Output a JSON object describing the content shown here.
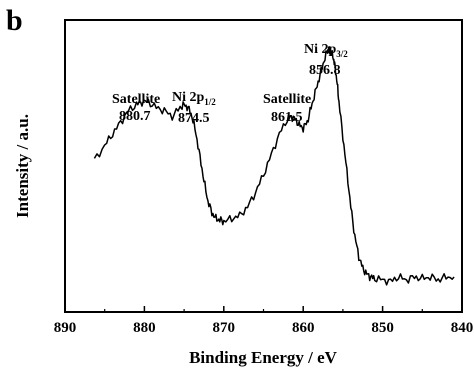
{
  "panel_label": "b",
  "chart_data": {
    "type": "line",
    "title": "",
    "xlabel": "Binding Energy / eV",
    "ylabel": "Intensity / a.u.",
    "xlim": [
      890,
      840
    ],
    "x_reversed": true,
    "ylim": [
      0,
      100
    ],
    "y_ticks_labeled": false,
    "x_ticks": [
      890,
      880,
      870,
      860,
      850,
      840
    ],
    "x_tick_labels": [
      "890",
      "880",
      "870",
      "860",
      "850",
      "840"
    ],
    "grid": false,
    "legend": "none",
    "series": [
      {
        "color": "#000000",
        "x": [
          886.3,
          885.0,
          884.0,
          883.0,
          882.0,
          881.0,
          880.3,
          879.5,
          878.5,
          877.5,
          876.5,
          875.5,
          875.0,
          874.5,
          874.0,
          873.5,
          873.0,
          872.5,
          872.0,
          871.5,
          871.0,
          870.5,
          870.0,
          869.0,
          868.0,
          867.0,
          866.0,
          865.0,
          864.0,
          863.0,
          862.0,
          861.5,
          861.0,
          860.5,
          860.0,
          859.5,
          859.0,
          858.5,
          858.0,
          857.5,
          857.0,
          856.8,
          856.5,
          856.2,
          856.0,
          855.7,
          855.5,
          855.0,
          854.5,
          854.0,
          853.5,
          853.0,
          852.5,
          852.0,
          851.5,
          851.0,
          850.0,
          849.0,
          848.0,
          847.0,
          846.0,
          845.0,
          844.0,
          843.0,
          842.0,
          841.0
        ],
        "y": [
          52,
          57,
          61,
          65,
          69,
          71,
          72,
          72,
          70,
          69,
          67,
          70,
          71,
          70,
          67,
          61,
          53,
          45,
          38,
          34,
          32,
          31.5,
          31,
          32,
          33,
          36,
          41,
          47,
          54,
          61,
          66,
          67,
          66,
          64,
          63,
          65,
          70,
          75,
          80,
          85,
          89,
          90,
          89,
          87,
          84,
          78,
          72,
          60,
          48,
          36,
          26,
          19,
          15,
          13,
          12,
          11.5,
          11,
          10.5,
          12,
          11,
          12,
          11.5,
          12,
          11,
          12,
          12
        ]
      }
    ],
    "annotations": [
      {
        "text": "Satellite",
        "value": "880.7"
      },
      {
        "text": "Ni 2p",
        "sub": "1/2",
        "value": "874.5"
      },
      {
        "text": "Satellite",
        "value": "861.5"
      },
      {
        "text": "Ni 2p",
        "sub": "3/2",
        "value": "856.8"
      }
    ]
  }
}
